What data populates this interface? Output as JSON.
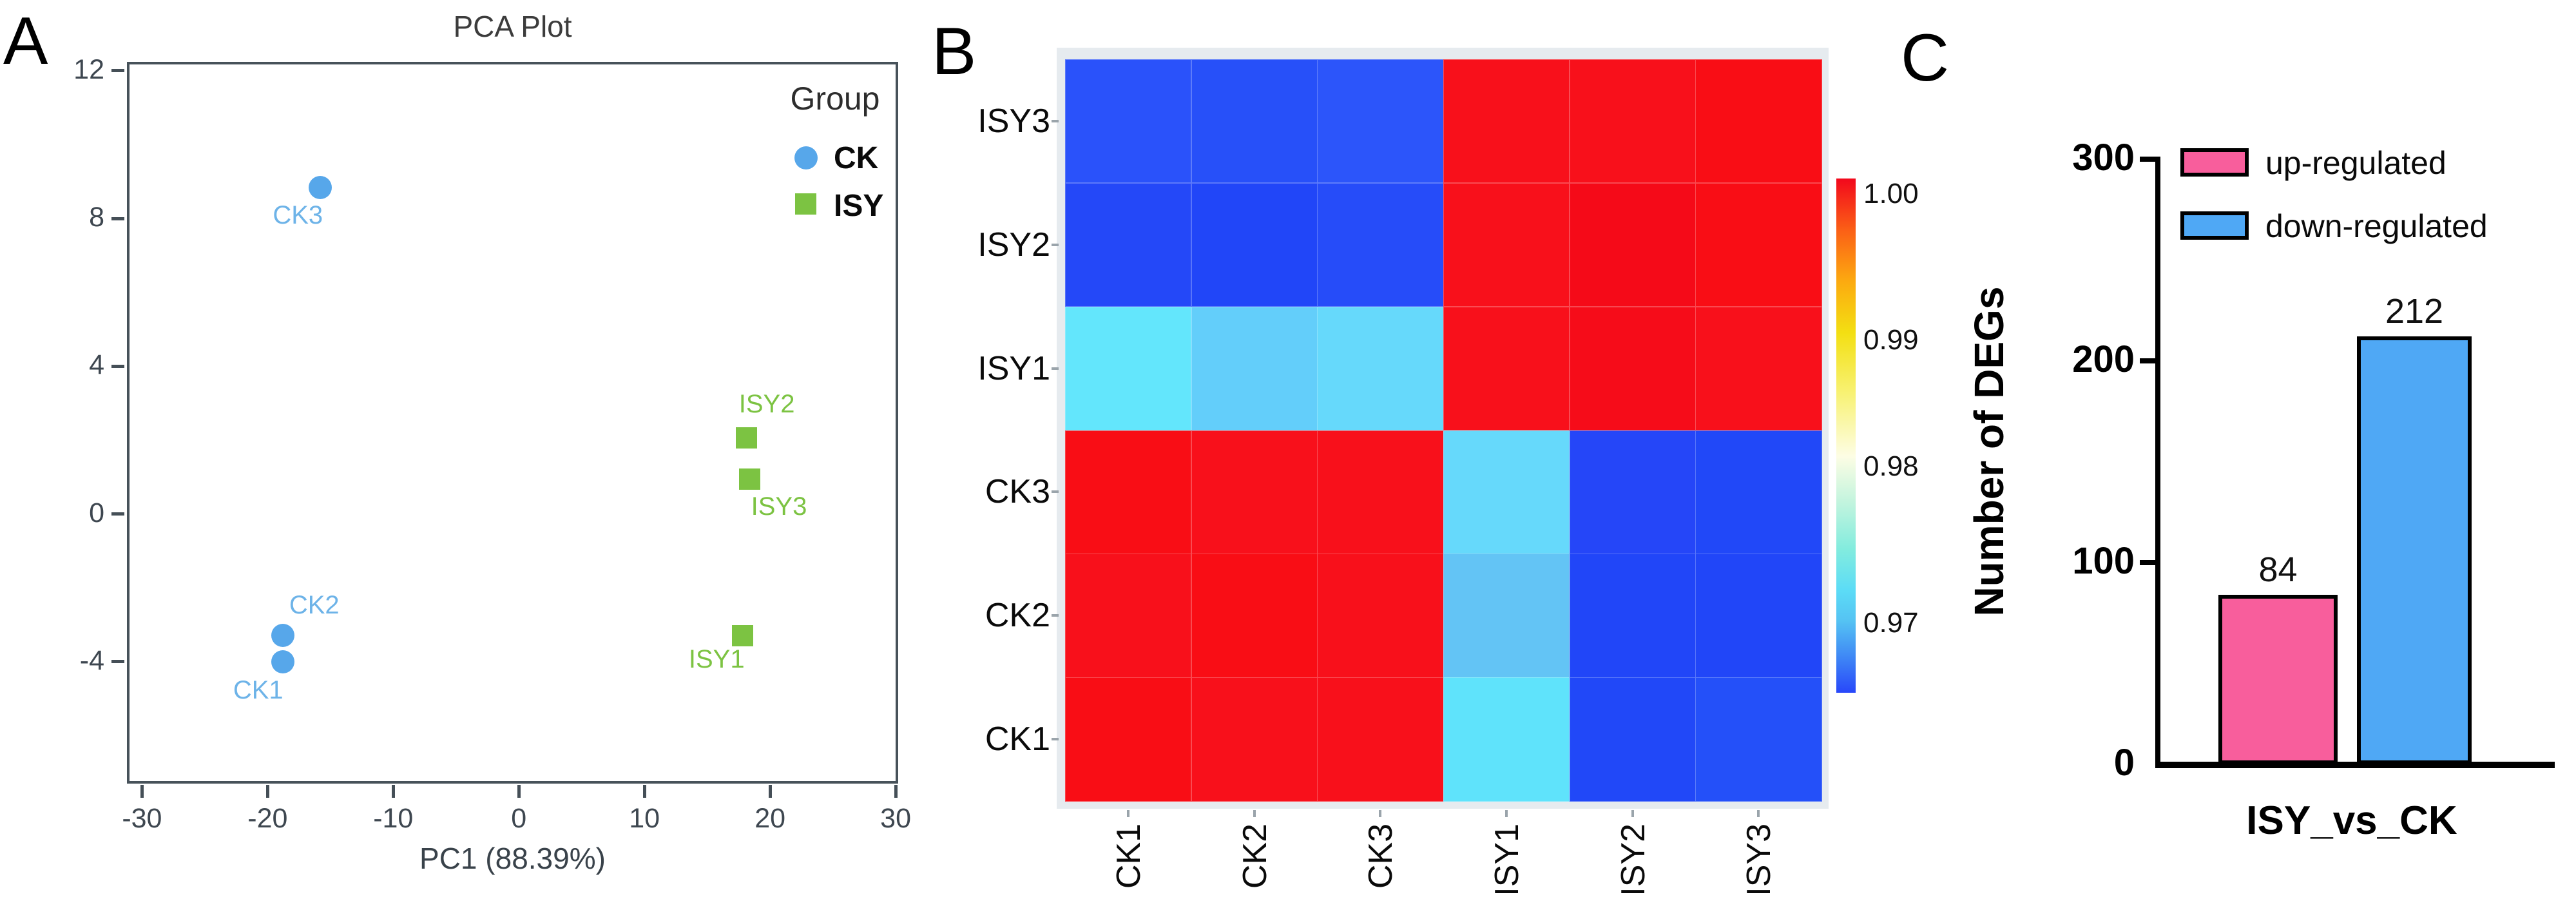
{
  "labels": {
    "panel_a": "A",
    "panel_b": "B",
    "panel_c": "C"
  },
  "chart_data": [
    {
      "id": "pca",
      "type": "scatter",
      "title": "PCA Plot",
      "xlabel": "PC1 (88.39%)",
      "legend_title": "Group",
      "legend_position": "top-right-inside",
      "grid": false,
      "xlim": [
        -31.2,
        30.2
      ],
      "ylim": [
        -7.3,
        12.24
      ],
      "x_ticks": [
        -30,
        -20,
        -10,
        0,
        10,
        20,
        30
      ],
      "y_ticks": [
        12,
        8,
        4,
        0,
        -4
      ],
      "series": [
        {
          "name": "CK",
          "marker": "circle",
          "color": "#57a7ea",
          "label_color": "#6db3e8",
          "points": [
            {
              "label": "CK1",
              "x": -18.8,
              "y": -4.0,
              "dx": -38,
              "dy": 46
            },
            {
              "label": "CK2",
              "x": -18.8,
              "y": -3.28,
              "dx": 49,
              "dy": -45
            },
            {
              "label": "CK3",
              "x": -15.8,
              "y": 8.83,
              "dx": -35,
              "dy": 45
            }
          ]
        },
        {
          "name": "ISY",
          "marker": "square",
          "color": "#7cc342",
          "label_color": "#7cc342",
          "points": [
            {
              "label": "ISY1",
              "x": 17.8,
              "y": -3.3,
              "dx": -40,
              "dy": 38
            },
            {
              "label": "ISY2",
              "x": 18.1,
              "y": 2.06,
              "dx": 32,
              "dy": -51
            },
            {
              "label": "ISY3",
              "x": 18.4,
              "y": 0.94,
              "dx": 45,
              "dy": 44
            }
          ]
        }
      ]
    },
    {
      "id": "correlation_heatmap",
      "type": "heatmap",
      "rows": [
        "ISY3",
        "ISY2",
        "ISY1",
        "CK3",
        "CK2",
        "CK1"
      ],
      "cols": [
        "CK1",
        "CK2",
        "CK3",
        "ISY1",
        "ISY2",
        "ISY3"
      ],
      "values": [
        [
          0.966,
          0.965,
          0.966,
          1.0,
          1.0,
          1.0
        ],
        [
          0.965,
          0.965,
          0.965,
          1.0,
          1.0,
          1.0
        ],
        [
          0.973,
          0.97,
          0.972,
          1.0,
          1.0,
          1.0
        ],
        [
          1.0,
          1.0,
          1.0,
          0.972,
          0.965,
          0.965
        ],
        [
          1.0,
          1.0,
          1.0,
          0.97,
          0.965,
          0.965
        ],
        [
          1.0,
          1.0,
          1.0,
          0.973,
          0.965,
          0.966
        ]
      ],
      "cell_colors": [
        [
          "#2a52fa",
          "#2750f9",
          "#2c55fa",
          "#f8101b",
          "#f8101b",
          "#f90d15"
        ],
        [
          "#2448f8",
          "#2146f8",
          "#264cf9",
          "#f8101b",
          "#f50a18",
          "#f90d15"
        ],
        [
          "#63e6fc",
          "#63cefa",
          "#66d9fb",
          "#f8101b",
          "#f60c19",
          "#f8101b"
        ],
        [
          "#f90d15",
          "#f8101b",
          "#f8101b",
          "#66d9fb",
          "#2546f8",
          "#2148f8"
        ],
        [
          "#f8101b",
          "#f90d15",
          "#f8101b",
          "#63c4f5",
          "#2146f8",
          "#2146f8"
        ],
        [
          "#f90d15",
          "#f8101b",
          "#f8101b",
          "#5fe3fb",
          "#2148f8",
          "#2450f9"
        ]
      ],
      "colorbar": {
        "ticks": [
          "1.00",
          "0.99",
          "0.98",
          "0.97"
        ],
        "tick_pcts": [
          3,
          31.5,
          56,
          86.5
        ],
        "gradient": [
          [
            0,
            "#f2081c"
          ],
          [
            10,
            "#fb5f16"
          ],
          [
            20,
            "#fcaa10"
          ],
          [
            30,
            "#f3df12"
          ],
          [
            42,
            "#f8f276"
          ],
          [
            54,
            "#fdfde4"
          ],
          [
            63,
            "#c2f4de"
          ],
          [
            72,
            "#83ecde"
          ],
          [
            80,
            "#5cdcf6"
          ],
          [
            86,
            "#55c3f3"
          ],
          [
            93,
            "#3f88f5"
          ],
          [
            100,
            "#2847fa"
          ]
        ]
      }
    },
    {
      "id": "deg_counts",
      "type": "bar",
      "title": "",
      "ylabel": "Number of DEGs",
      "xlabel": "ISY_vs_CK",
      "categories": [
        "ISY_vs_CK"
      ],
      "ylim": [
        0,
        300
      ],
      "y_ticks": [
        300,
        200,
        100,
        0
      ],
      "legend_position": "top-left-inside",
      "series": [
        {
          "name": "up-regulated",
          "values": [
            84
          ],
          "color": "#f85e9c"
        },
        {
          "name": "down-regulated",
          "values": [
            212
          ],
          "color": "#4fa8f5"
        }
      ]
    }
  ]
}
